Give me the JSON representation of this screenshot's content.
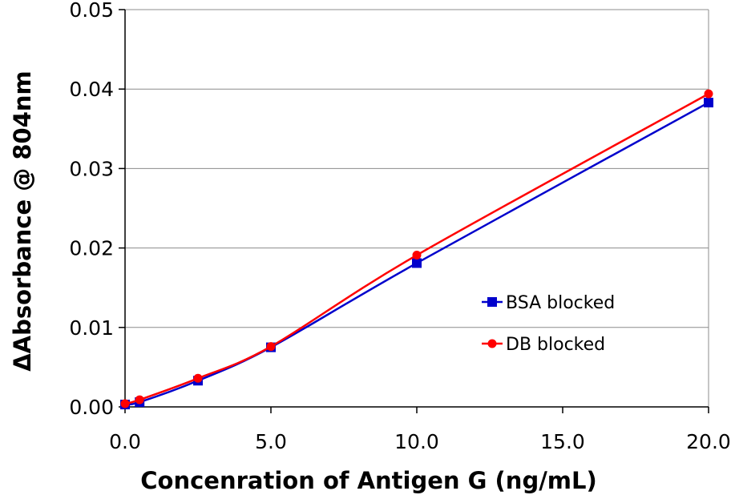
{
  "chart_data": {
    "type": "line",
    "title": "",
    "xlabel": "Concenration of Antigen G (ng/mL)",
    "ylabel": "ΔAbsorbance @ 804nm",
    "xlim": [
      0,
      20
    ],
    "ylim": [
      0,
      0.05
    ],
    "x_ticks": [
      "0.0",
      "5.0",
      "10.0",
      "15.0",
      "20.0"
    ],
    "y_ticks": [
      "0.00",
      "0.01",
      "0.02",
      "0.03",
      "0.04",
      "0.05"
    ],
    "grid": "horizontal",
    "legend_position": "right",
    "series": [
      {
        "name": "BSA blocked",
        "color": "#0000CC",
        "marker": "square",
        "x": [
          0,
          0.5,
          2.5,
          5,
          10,
          20
        ],
        "values": [
          0.0003,
          0.0006,
          0.0033,
          0.0075,
          0.0181,
          0.0383
        ]
      },
      {
        "name": "DB blocked",
        "color": "#FF0000",
        "marker": "circle",
        "x": [
          0,
          0.5,
          2.5,
          5,
          10,
          20
        ],
        "values": [
          0.0004,
          0.0009,
          0.0036,
          0.0076,
          0.0191,
          0.0394
        ]
      }
    ]
  }
}
